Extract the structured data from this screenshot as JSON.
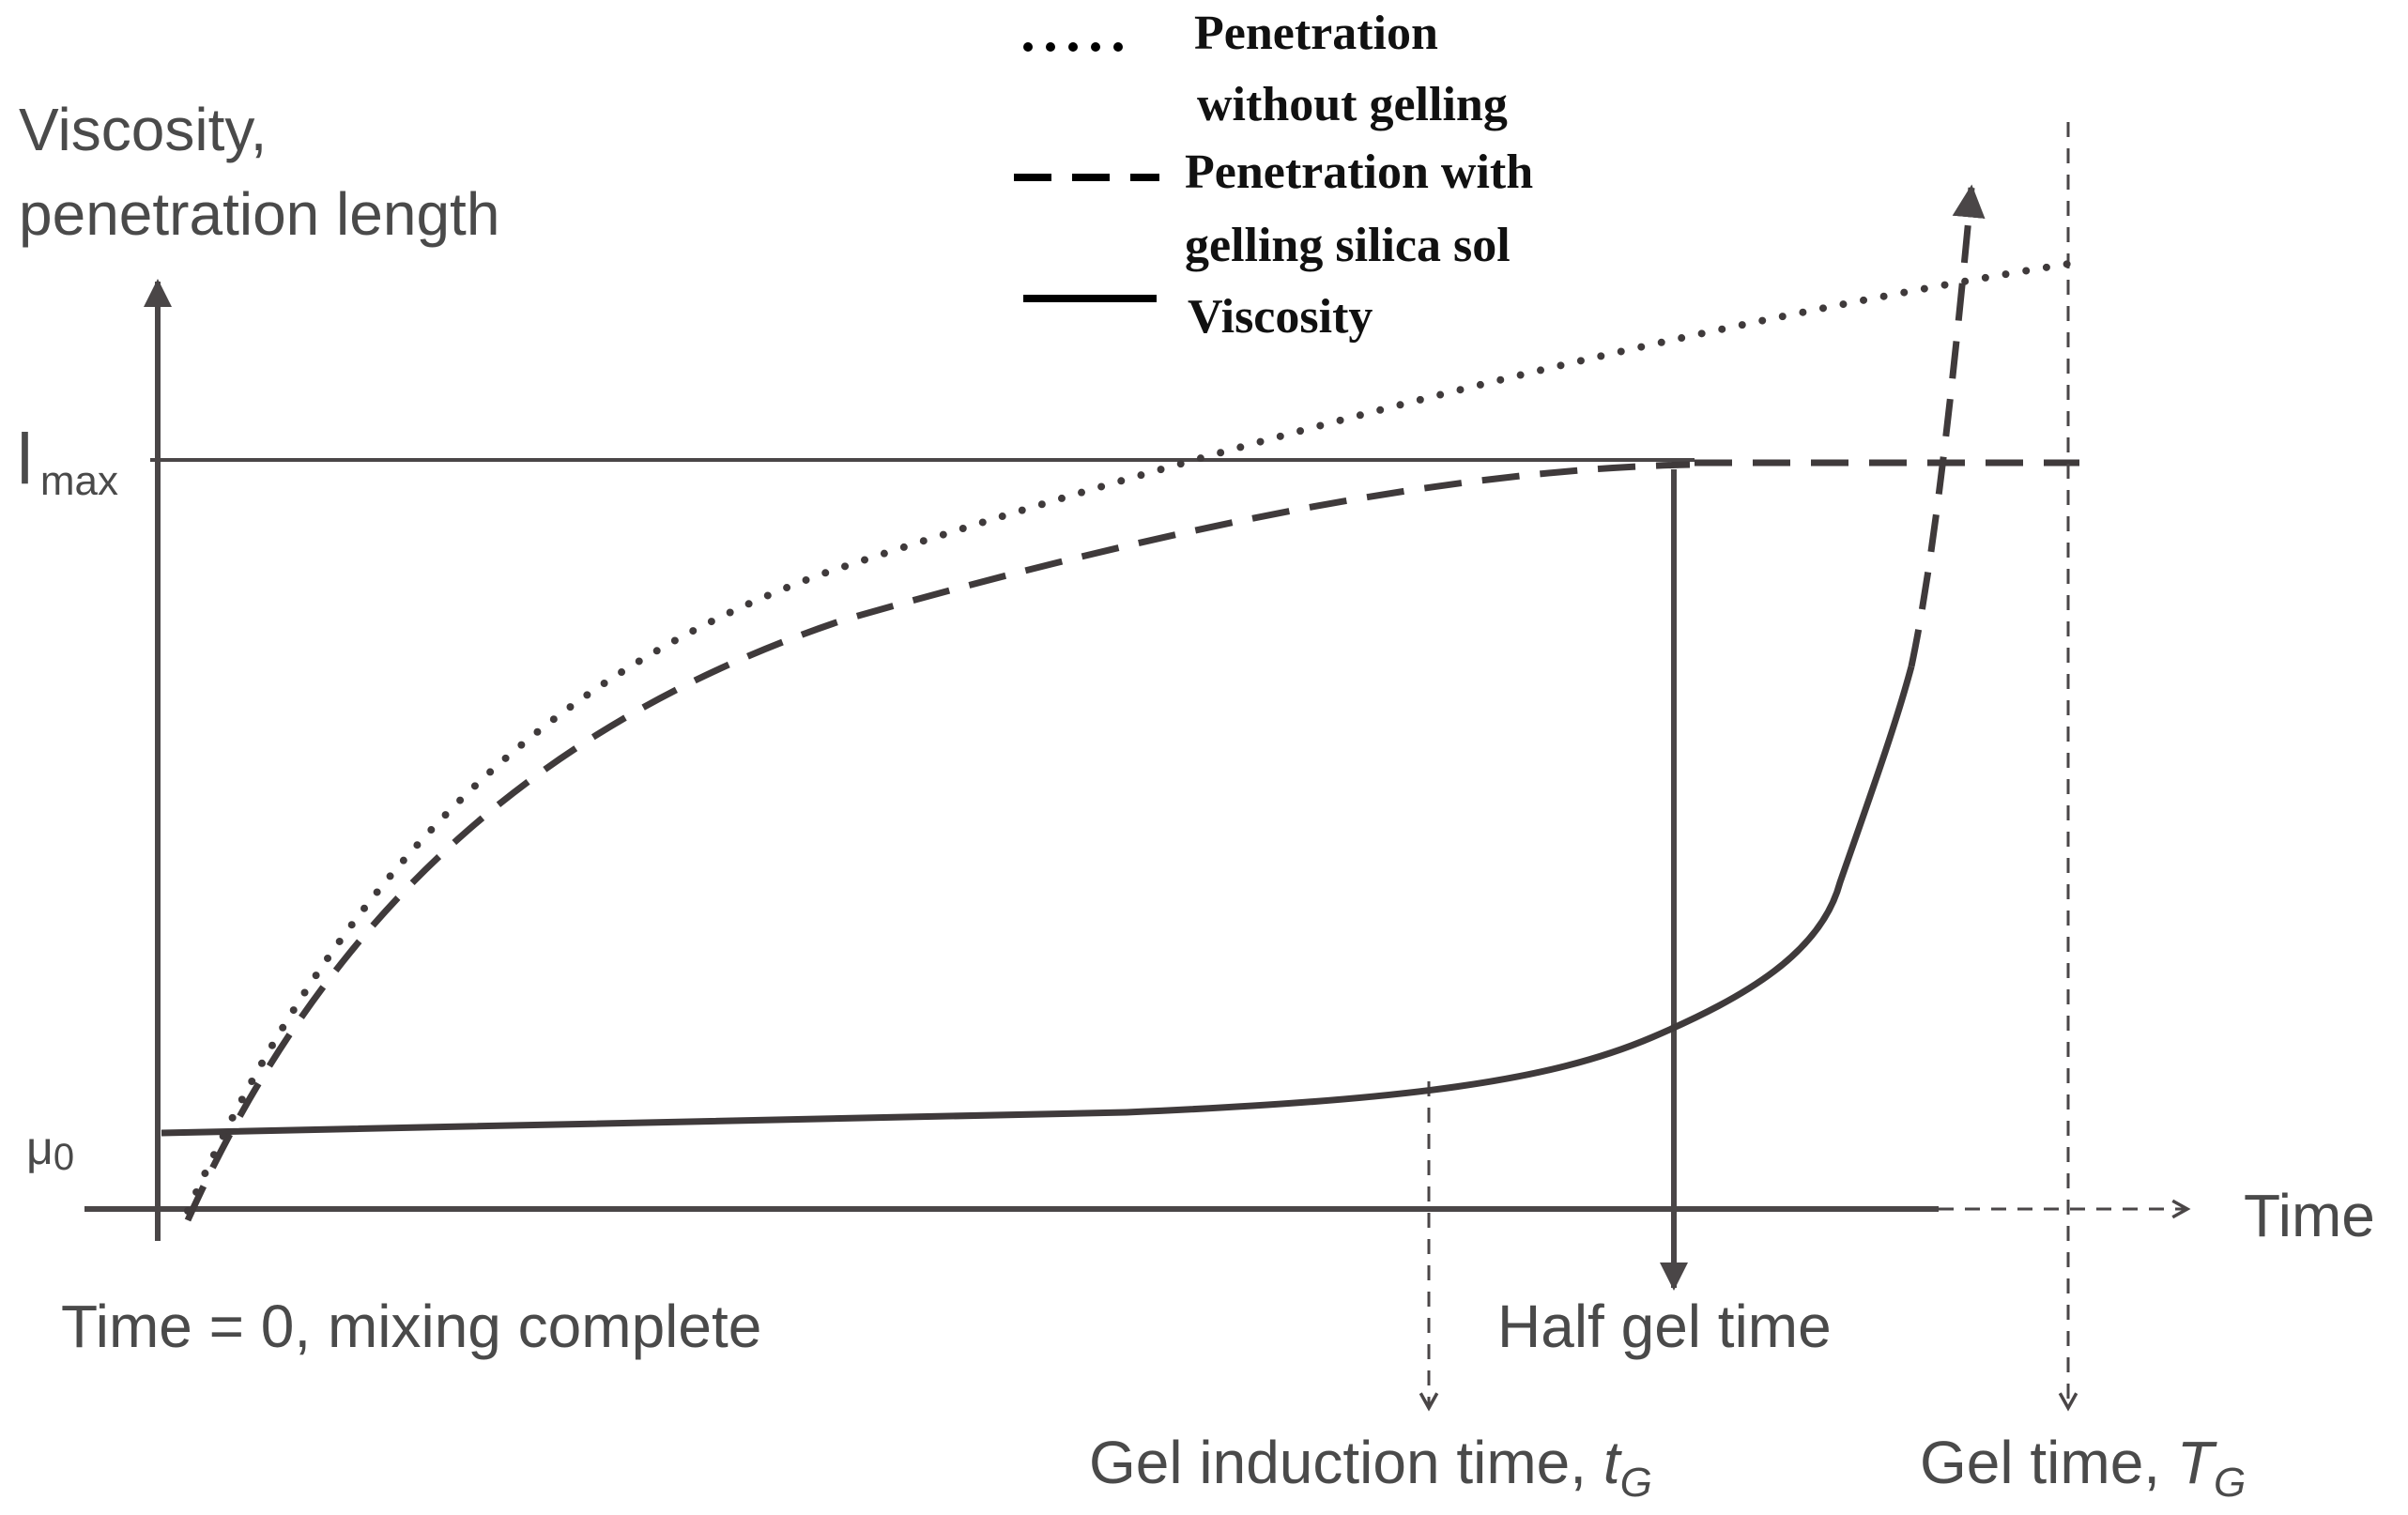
{
  "diagram": {
    "y_axis_label_line1": "Viscosity,",
    "y_axis_label_line2": "penetration length",
    "x_axis_label": "Time",
    "y_tick_lmax_main": "l",
    "y_tick_lmax_sub": "max",
    "y_tick_mu0_main": "μ",
    "y_tick_mu0_sub": "0",
    "origin_label": "Time = 0, mixing complete",
    "half_gel_label": "Half gel time",
    "gel_induction_label": "Gel induction time, ",
    "gel_induction_symbol": "t",
    "gel_induction_sub": "G",
    "gel_time_label": "Gel time, ",
    "gel_time_symbol": "T",
    "gel_time_sub": "G"
  },
  "legend": {
    "without_gelling_line1": "Penetration",
    "without_gelling_line2": "without gelling",
    "with_gelling_line1": "Penetration with",
    "with_gelling_line2": "gelling silica sol",
    "viscosity": "Viscosity"
  },
  "colors": {
    "curve": "#3f3a3b",
    "axis": "#4a4647",
    "label_text": "#4a4a4a",
    "legend_text": "#111111"
  }
}
